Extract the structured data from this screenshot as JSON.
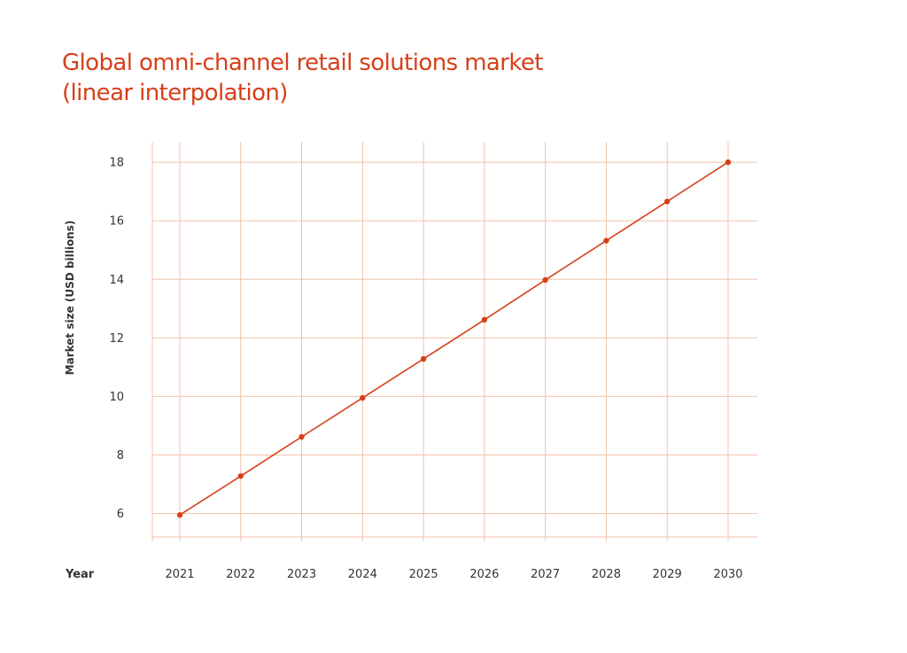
{
  "chart_data": {
    "type": "line",
    "title_lines": [
      "Global omni-channel retail solutions market",
      "(linear interpolation)"
    ],
    "xlabel": "Year",
    "ylabel": "Market size (USD billions)",
    "x": [
      "2021",
      "2022",
      "2023",
      "2024",
      "2025",
      "2026",
      "2027",
      "2028",
      "2029",
      "2030"
    ],
    "series": [
      {
        "values": [
          5.95,
          7.28,
          8.62,
          9.95,
          11.28,
          12.62,
          13.98,
          15.32,
          16.66,
          18.0
        ]
      }
    ],
    "y_ticks": [
      6,
      8,
      10,
      12,
      14,
      16,
      18
    ],
    "ylim": [
      5.2,
      18.7
    ],
    "grid": true,
    "legend": "none",
    "colors": {
      "line": "#d6401a",
      "grid": "#f2c2aa",
      "title": "#d6401a",
      "text": "#333333"
    }
  }
}
